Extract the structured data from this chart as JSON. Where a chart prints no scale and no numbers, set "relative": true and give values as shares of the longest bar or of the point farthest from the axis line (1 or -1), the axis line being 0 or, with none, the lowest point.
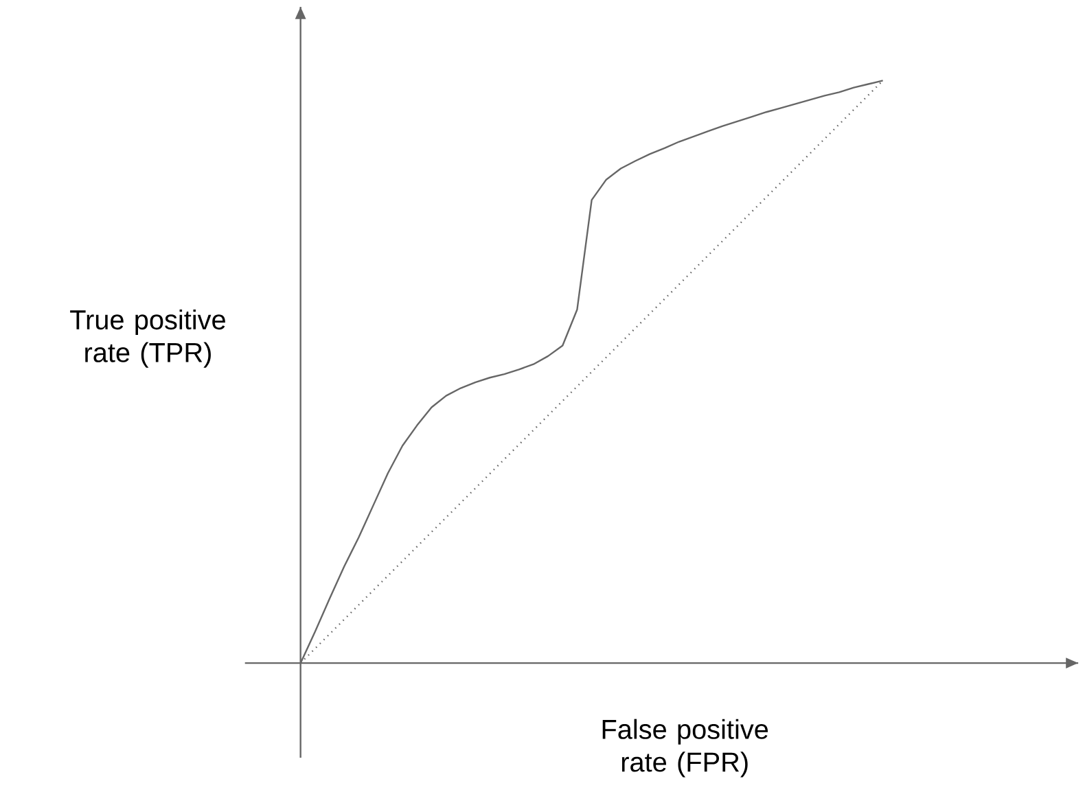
{
  "chart_data": {
    "type": "line",
    "relative": true,
    "xlabel": "False positive rate (FPR)",
    "ylabel": "True positive rate (TPR)",
    "categories": [
      null,
      null,
      null,
      null,
      null,
      null,
      null,
      null,
      null,
      null,
      null,
      null,
      null,
      null,
      null,
      null,
      null,
      null,
      null,
      null,
      null,
      null,
      null,
      null,
      null,
      null,
      null,
      null,
      null,
      null,
      null,
      null,
      null,
      null,
      null,
      null,
      null,
      null,
      null,
      null,
      null
    ],
    "series": [
      {
        "color": "#666666",
        "line_style": "solid",
        "values": [
          0,
          0.054,
          0.111,
          0.166,
          0.216,
          0.271,
          0.326,
          0.373,
          0.408,
          0.439,
          0.459,
          0.472,
          0.482,
          0.49,
          0.496,
          0.504,
          0.513,
          0.527,
          0.545,
          0.607,
          0.795,
          0.83,
          0.849,
          0.862,
          0.874,
          0.884,
          0.895,
          0.904,
          0.913,
          0.922,
          0.93,
          0.938,
          0.946,
          0.953,
          0.96,
          0.967,
          0.974,
          0.98,
          0.988,
          0.994,
          1.0
        ]
      },
      {
        "color": "#666666",
        "line_style": "dotted",
        "values": [
          0,
          0.025,
          0.05,
          0.075,
          0.1,
          0.125,
          0.15,
          0.175,
          0.2,
          0.225,
          0.25,
          0.275,
          0.3,
          0.325,
          0.35,
          0.375,
          0.4,
          0.425,
          0.45,
          0.475,
          0.5,
          0.525,
          0.55,
          0.575,
          0.6,
          0.625,
          0.65,
          0.675,
          0.7,
          0.725,
          0.75,
          0.775,
          0.8,
          0.825,
          0.85,
          0.875,
          0.9,
          0.925,
          0.95,
          0.975,
          1.0
        ]
      }
    ]
  }
}
